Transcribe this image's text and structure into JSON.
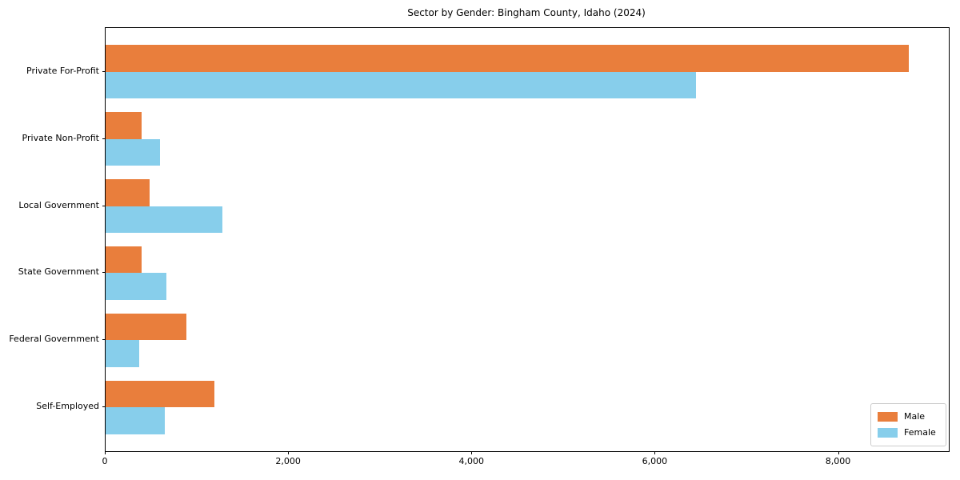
{
  "chart_data": {
    "type": "bar",
    "orientation": "horizontal",
    "title": "Sector by Gender: Bingham County, Idaho (2024)",
    "categories": [
      "Private For-Profit",
      "Private Non-Profit",
      "Local Government",
      "State Government",
      "Federal Government",
      "Self-Employed"
    ],
    "series": [
      {
        "name": "Male",
        "color": "#E97E3C",
        "values": [
          8760,
          390,
          480,
          390,
          880,
          1190
        ]
      },
      {
        "name": "Female",
        "color": "#87CEEB",
        "values": [
          6440,
          595,
          1275,
          660,
          365,
          645
        ]
      }
    ],
    "xlim": [
      0,
      9200
    ],
    "xticks": [
      0,
      2000,
      4000,
      6000,
      8000
    ],
    "xtick_labels": [
      "0",
      "2,000",
      "4,000",
      "6,000",
      "8,000"
    ],
    "xlabel": "",
    "ylabel": "",
    "grid": false,
    "legend": {
      "position": "lower right",
      "entries": [
        "Male",
        "Female"
      ]
    }
  }
}
